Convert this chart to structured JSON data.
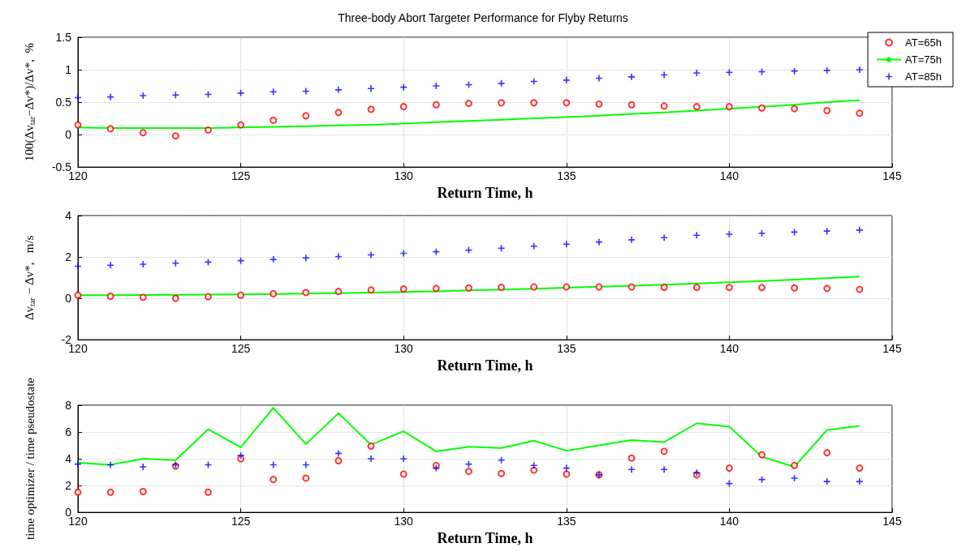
{
  "chart_data": [
    {
      "type": "line",
      "title": "Three-body Abort Targeter Performance for Flyby Returns",
      "xlabel": "Return Time, h",
      "ylabel": "100(Δv$_{tar}$−Δv*)/Δv*,  %",
      "x": [
        120,
        121,
        122,
        123,
        124,
        125,
        126,
        127,
        128,
        129,
        130,
        131,
        132,
        133,
        134,
        135,
        136,
        137,
        138,
        139,
        140,
        141,
        142,
        143,
        144
      ],
      "xlim": [
        120,
        145
      ],
      "xticks": [
        120,
        125,
        130,
        135,
        140,
        145
      ],
      "ylim": [
        -0.5,
        1.5
      ],
      "yticks": [
        -0.5,
        0,
        0.5,
        1,
        1.5
      ],
      "grid": true,
      "legend": "top right",
      "series": [
        {
          "name": "AT=65h",
          "type": "scatter",
          "marker": "circle",
          "color": "#ff0000",
          "values": [
            0.15,
            0.09,
            0.03,
            -0.02,
            0.07,
            0.15,
            0.22,
            0.29,
            0.34,
            0.39,
            0.43,
            0.46,
            0.48,
            0.49,
            0.49,
            0.49,
            0.47,
            0.46,
            0.44,
            0.43,
            0.43,
            0.41,
            0.4,
            0.37,
            0.33
          ]
        },
        {
          "name": "AT=75h",
          "marker": "none",
          "color": "#00ff00",
          "values": [
            0.11,
            0.1,
            0.1,
            0.1,
            0.1,
            0.11,
            0.12,
            0.13,
            0.14,
            0.15,
            0.17,
            0.19,
            0.21,
            0.23,
            0.25,
            0.27,
            0.29,
            0.32,
            0.34,
            0.37,
            0.4,
            0.43,
            0.46,
            0.5,
            0.53
          ]
        },
        {
          "name": "AT=85h",
          "type": "scatter",
          "marker": "cross",
          "color": "#0000ff",
          "values": [
            0.57,
            0.58,
            0.6,
            0.61,
            0.62,
            0.64,
            0.66,
            0.67,
            0.69,
            0.71,
            0.73,
            0.75,
            0.77,
            0.79,
            0.82,
            0.84,
            0.87,
            0.89,
            0.92,
            0.95,
            0.96,
            0.97,
            0.98,
            0.99,
            1.0
          ]
        }
      ]
    },
    {
      "type": "line",
      "xlabel": "Return Time, h",
      "ylabel": "Δv$_{tar}$ − Δv*,   m/s",
      "x": [
        120,
        121,
        122,
        123,
        124,
        125,
        126,
        127,
        128,
        129,
        130,
        131,
        132,
        133,
        134,
        135,
        136,
        137,
        138,
        139,
        140,
        141,
        142,
        143,
        144
      ],
      "xlim": [
        120,
        145
      ],
      "xticks": [
        120,
        125,
        130,
        135,
        140,
        145
      ],
      "ylim": [
        -2,
        4
      ],
      "yticks": [
        -2,
        0,
        2,
        4
      ],
      "grid": true,
      "series": [
        {
          "type": "scatter",
          "marker": "circle",
          "color": "#ff0000",
          "values": [
            0.15,
            0.1,
            0.05,
            0.0,
            0.08,
            0.15,
            0.22,
            0.28,
            0.33,
            0.4,
            0.45,
            0.48,
            0.5,
            0.53,
            0.55,
            0.55,
            0.55,
            0.55,
            0.53,
            0.53,
            0.53,
            0.52,
            0.5,
            0.48,
            0.43
          ]
        },
        {
          "marker": "none",
          "color": "#00ff00",
          "values": [
            0.15,
            0.15,
            0.16,
            0.17,
            0.18,
            0.19,
            0.21,
            0.23,
            0.25,
            0.28,
            0.31,
            0.34,
            0.38,
            0.42,
            0.46,
            0.51,
            0.56,
            0.61,
            0.66,
            0.72,
            0.78,
            0.84,
            0.9,
            0.97,
            1.05
          ]
        },
        {
          "type": "scatter",
          "marker": "cross",
          "color": "#0000ff",
          "values": [
            1.55,
            1.6,
            1.65,
            1.7,
            1.75,
            1.82,
            1.88,
            1.95,
            2.02,
            2.1,
            2.18,
            2.25,
            2.33,
            2.42,
            2.52,
            2.62,
            2.72,
            2.83,
            2.93,
            3.05,
            3.1,
            3.15,
            3.2,
            3.25,
            3.3
          ]
        }
      ]
    },
    {
      "type": "line",
      "xlabel": "Return Time, h",
      "ylabel": "time optimizer / time pseudostate",
      "x": [
        120,
        121,
        122,
        123,
        124,
        125,
        126,
        127,
        128,
        129,
        130,
        131,
        132,
        133,
        134,
        135,
        136,
        137,
        138,
        139,
        140,
        141,
        142,
        143,
        144
      ],
      "xlim": [
        120,
        145
      ],
      "xticks": [
        120,
        125,
        130,
        135,
        140,
        145
      ],
      "ylim": [
        0,
        8
      ],
      "yticks": [
        0,
        2,
        4,
        6,
        8
      ],
      "grid": true,
      "series": [
        {
          "type": "scatter",
          "marker": "circle",
          "color": "#ff0000",
          "values": [
            1.5,
            1.5,
            1.55,
            3.45,
            1.5,
            4.0,
            2.45,
            2.55,
            3.85,
            4.95,
            2.85,
            3.5,
            3.05,
            2.9,
            3.15,
            2.85,
            2.8,
            4.05,
            4.55,
            2.8,
            3.3,
            4.3,
            3.5,
            4.45,
            3.3
          ]
        },
        {
          "marker": "none",
          "color": "#00ff00",
          "values": [
            3.7,
            3.55,
            4.0,
            3.9,
            6.2,
            4.85,
            7.8,
            5.1,
            7.4,
            5.05,
            6.05,
            4.55,
            4.9,
            4.8,
            5.35,
            4.6,
            5.0,
            5.4,
            5.25,
            6.65,
            6.4,
            4.15,
            3.4,
            6.15,
            6.45
          ]
        },
        {
          "type": "scatter",
          "marker": "cross",
          "color": "#0000ff",
          "values": [
            3.6,
            3.55,
            3.4,
            3.55,
            3.55,
            4.25,
            3.55,
            3.55,
            4.4,
            4.0,
            4.0,
            3.3,
            3.6,
            3.9,
            3.5,
            3.3,
            2.8,
            3.2,
            3.2,
            2.95,
            2.15,
            2.45,
            2.55,
            2.3,
            2.3
          ]
        }
      ]
    }
  ]
}
